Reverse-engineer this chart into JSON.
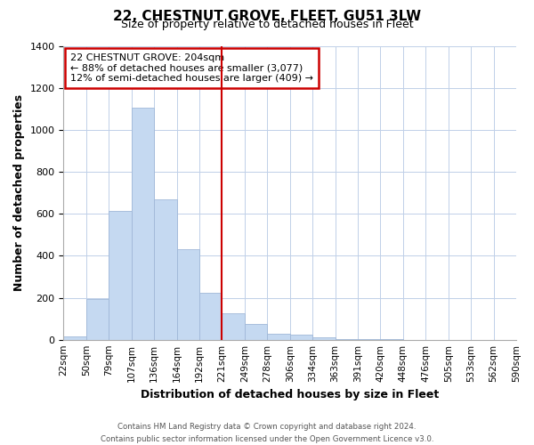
{
  "title_line1": "22, CHESTNUT GROVE, FLEET, GU51 3LW",
  "title_line2": "Size of property relative to detached houses in Fleet",
  "xlabel": "Distribution of detached houses by size in Fleet",
  "ylabel": "Number of detached properties",
  "bin_edges": [
    "22sqm",
    "50sqm",
    "79sqm",
    "107sqm",
    "136sqm",
    "164sqm",
    "192sqm",
    "221sqm",
    "249sqm",
    "278sqm",
    "306sqm",
    "334sqm",
    "363sqm",
    "391sqm",
    "420sqm",
    "448sqm",
    "476sqm",
    "505sqm",
    "533sqm",
    "562sqm",
    "590sqm"
  ],
  "bar_values": [
    15,
    195,
    615,
    1105,
    670,
    430,
    225,
    125,
    75,
    30,
    25,
    10,
    5,
    2,
    1,
    0,
    0,
    0,
    0,
    0
  ],
  "bar_color": "#c5d9f1",
  "bar_edge_color": "#a0b8d8",
  "vline_position": 7,
  "vline_color": "#cc0000",
  "annotation_line1": "22 CHESTNUT GROVE: 204sqm",
  "annotation_line2": "← 88% of detached houses are smaller (3,077)",
  "annotation_line3": "12% of semi-detached houses are larger (409) →",
  "annotation_box_color": "#ffffff",
  "annotation_box_edge": "#cc0000",
  "ylim": [
    0,
    1400
  ],
  "yticks": [
    0,
    200,
    400,
    600,
    800,
    1000,
    1200,
    1400
  ],
  "footer_line1": "Contains HM Land Registry data © Crown copyright and database right 2024.",
  "footer_line2": "Contains public sector information licensed under the Open Government Licence v3.0.",
  "background_color": "#ffffff",
  "grid_color": "#c0d0e8"
}
